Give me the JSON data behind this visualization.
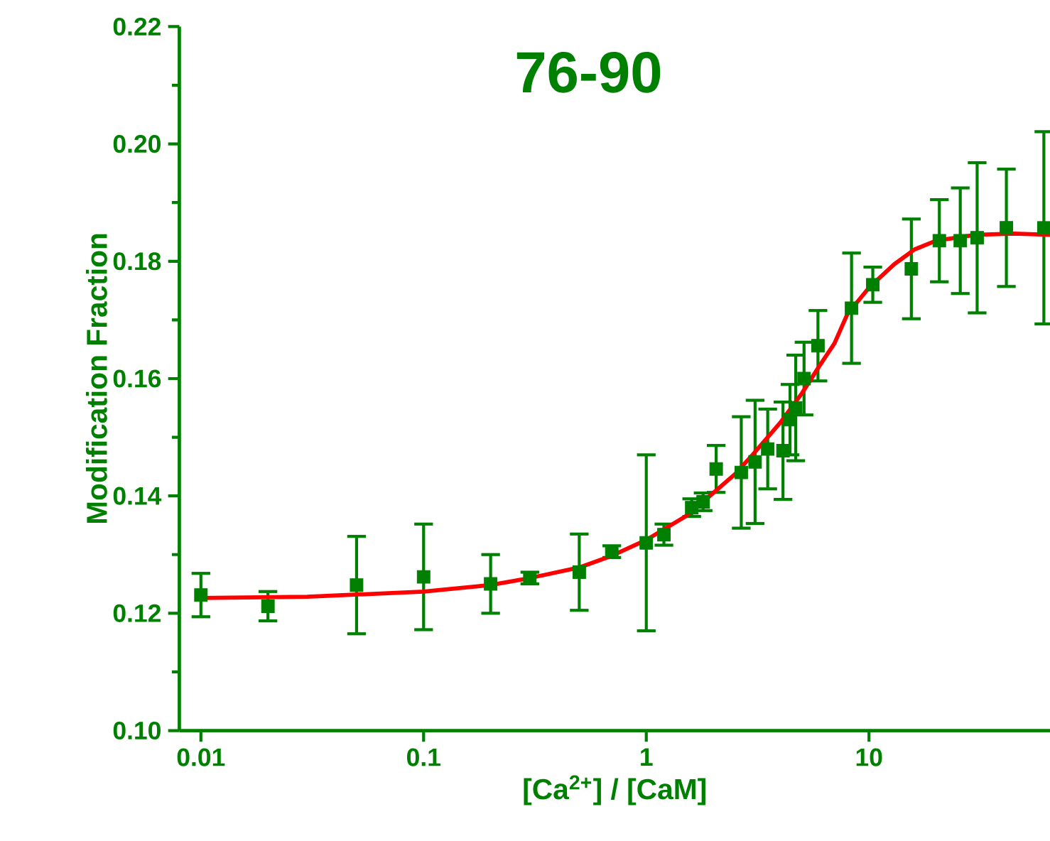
{
  "chart_data": {
    "type": "scatter",
    "title": "76-90",
    "xlabel": "[Ca$^{2+}$] / [CaM]",
    "ylabel": "Modification Fraction",
    "log": "x",
    "xlim": [
      0.008,
      65
    ],
    "ylim": [
      0.1,
      0.22
    ],
    "xticks": [
      0.01,
      0.1,
      1,
      10
    ],
    "yticks": [
      {
        "value": 0.1,
        "label": "0.10"
      },
      {
        "value": 0.12,
        "label": "0.12"
      },
      {
        "value": 0.14,
        "label": "0.14"
      },
      {
        "value": 0.16,
        "label": "0.16"
      },
      {
        "value": 0.18,
        "label": "0.18"
      },
      {
        "value": 0.2,
        "label": "0.20"
      },
      {
        "value": 0.22,
        "label": "0.22"
      }
    ],
    "grid": false,
    "series": [
      {
        "color": "#008000",
        "marker": "square",
        "x": [
          0.01,
          0.02,
          0.05,
          0.1,
          0.2,
          0.3,
          0.5,
          0.7,
          1,
          1.2,
          1.6,
          1.8,
          2.06,
          2.67,
          3.08,
          3.51,
          4.11,
          4.42,
          4.69,
          5.11,
          5.9,
          8.35,
          10.4,
          15.5,
          20.7,
          25.7,
          30.6,
          41.4,
          61
        ],
        "values": [
          0.1231,
          0.1212,
          0.1248,
          0.1262,
          0.125,
          0.126,
          0.127,
          0.1305,
          0.132,
          0.1334,
          0.138,
          0.139,
          0.1446,
          0.144,
          0.1458,
          0.148,
          0.1477,
          0.153,
          0.155,
          0.16,
          0.1656,
          0.172,
          0.176,
          0.1787,
          0.1835,
          0.1835,
          0.184,
          0.1857,
          0.1857
        ],
        "errors": [
          0.0037,
          0.0025,
          0.0083,
          0.009,
          0.005,
          0.001,
          0.0065,
          0.001,
          0.015,
          0.0018,
          0.0015,
          0.0015,
          0.004,
          0.0095,
          0.0105,
          0.0068,
          0.0083,
          0.006,
          0.009,
          0.0062,
          0.006,
          0.0094,
          0.003,
          0.0085,
          0.007,
          0.009,
          0.0128,
          0.01,
          0.0164
        ]
      },
      {
        "type": "line",
        "color": "#ff0000",
        "marker": "none",
        "line_style": "solid",
        "x": [
          0.01,
          0.03,
          0.1,
          0.2,
          0.3,
          0.5,
          0.7,
          1,
          1.5,
          2,
          2.5,
          3,
          4,
          5,
          6,
          7,
          8,
          10,
          13,
          16,
          20,
          30,
          45,
          65
        ],
        "values": [
          0.1226,
          0.1228,
          0.1237,
          0.1248,
          0.126,
          0.1278,
          0.1298,
          0.1325,
          0.1365,
          0.1405,
          0.1437,
          0.147,
          0.1525,
          0.1575,
          0.1622,
          0.166,
          0.171,
          0.1755,
          0.1795,
          0.182,
          0.1835,
          0.1845,
          0.1847,
          0.1845
        ]
      }
    ]
  }
}
